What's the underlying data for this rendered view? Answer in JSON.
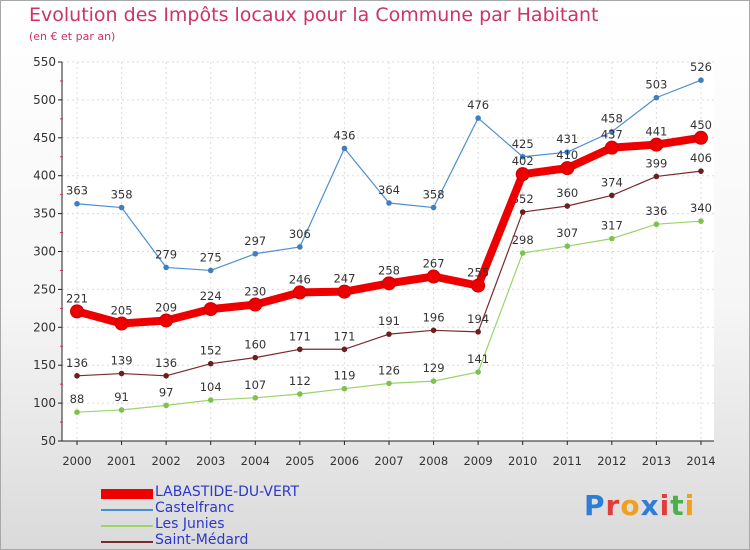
{
  "chart_data": {
    "type": "line",
    "title": "Evolution des Impôts locaux pour la Commune par Habitant",
    "subtitle": "(en € et par an)",
    "x": [
      "2000",
      "2001",
      "2002",
      "2003",
      "2004",
      "2005",
      "2006",
      "2007",
      "2008",
      "2009",
      "2010",
      "2011",
      "2012",
      "2013",
      "2014"
    ],
    "ylim": [
      50,
      550
    ],
    "yticks": [
      50,
      100,
      150,
      200,
      250,
      300,
      350,
      400,
      450,
      500,
      550
    ],
    "grid": true,
    "legend_position": "bottom-left",
    "series": [
      {
        "name": "Castelfranc",
        "color": "#4a8fd4",
        "point_color": "#3f7fbf",
        "width": 1.2,
        "marker": 4,
        "values": [
          363,
          358,
          279,
          275,
          297,
          306,
          436,
          364,
          358,
          476,
          425,
          431,
          458,
          503,
          526
        ]
      },
      {
        "name": "Les Junies",
        "color": "#9ad46a",
        "point_color": "#7dc24a",
        "width": 1.2,
        "marker": 4,
        "values": [
          88,
          91,
          97,
          104,
          107,
          112,
          119,
          126,
          129,
          141,
          298,
          307,
          317,
          336,
          340
        ]
      },
      {
        "name": "Saint-Médard",
        "color": "#7a2a2a",
        "point_color": "#6b1f1f",
        "width": 1.2,
        "marker": 4,
        "values": [
          136,
          139,
          136,
          152,
          160,
          171,
          171,
          191,
          196,
          194,
          352,
          360,
          374,
          399,
          406
        ]
      },
      {
        "name": "LABASTIDE-DU-VERT",
        "color": "#ee0000",
        "point_color": "#ee0000",
        "width": 8,
        "marker": 7,
        "values": [
          221,
          205,
          209,
          224,
          230,
          246,
          247,
          258,
          267,
          255,
          402,
          410,
          437,
          441,
          450
        ]
      }
    ]
  },
  "legend_order": [
    "LABASTIDE-DU-VERT",
    "Castelfranc",
    "Les Junies",
    "Saint-Médard"
  ],
  "brand": {
    "letters": [
      "P",
      "r",
      "o",
      "x",
      "i",
      "t",
      "i"
    ],
    "colors": [
      "#2e7dd6",
      "#e23c3c",
      "#f0a020",
      "#2e7dd6",
      "#e23c3c",
      "#4ab04a",
      "#f0a020"
    ]
  }
}
